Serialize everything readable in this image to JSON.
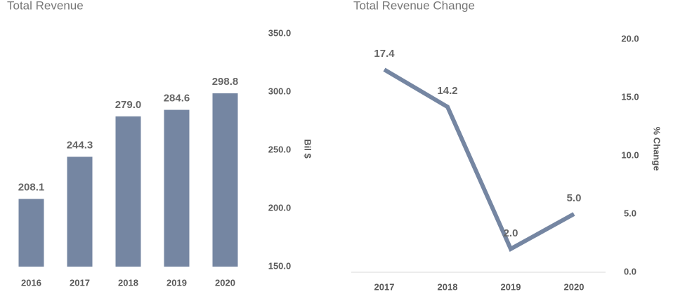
{
  "chart_data": [
    {
      "type": "bar",
      "title": "Total Revenue",
      "y_label": "Bil $",
      "categories": [
        "2016",
        "2017",
        "2018",
        "2019",
        "2020"
      ],
      "values": [
        208.1,
        244.3,
        279.0,
        284.6,
        298.8
      ],
      "value_labels": [
        "208.1",
        "244.3",
        "279.0",
        "284.6",
        "298.8"
      ],
      "color": "#7586a2",
      "ylim": [
        150,
        350
      ],
      "yticks": [
        {
          "value": 150,
          "label": "150.0"
        },
        {
          "value": 200,
          "label": "200.0"
        },
        {
          "value": 250,
          "label": "250.0"
        },
        {
          "value": 300,
          "label": "300.0"
        },
        {
          "value": 350,
          "label": "350.0"
        }
      ]
    },
    {
      "type": "line",
      "title": "Total Revenue Change",
      "y_label": "% Change",
      "categories": [
        "2017",
        "2018",
        "2019",
        "2020"
      ],
      "values": [
        17.4,
        14.2,
        2.0,
        5.0
      ],
      "value_labels": [
        "17.4",
        "14.2",
        "2.0",
        "5.0"
      ],
      "color": "#7586a2",
      "ylim": [
        0,
        20
      ],
      "yticks": [
        {
          "value": 0,
          "label": "0.0"
        },
        {
          "value": 5,
          "label": "5.0"
        },
        {
          "value": 10,
          "label": "10.0"
        },
        {
          "value": 15,
          "label": "15.0"
        },
        {
          "value": 20,
          "label": "20.0"
        }
      ]
    }
  ]
}
